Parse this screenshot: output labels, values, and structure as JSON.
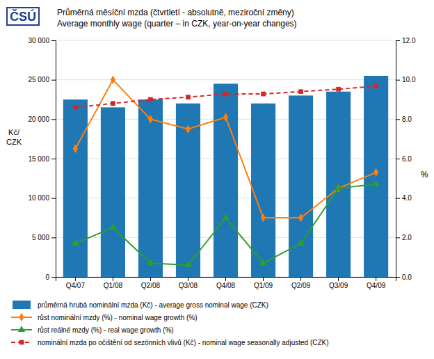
{
  "chart_data": {
    "type": "bar",
    "title": "Průměrná měsíční mzda (čtvrtletí - absolutně, meziroční změny)",
    "subtitle": "Average monthly wage (quarter – in CZK, year-on-year changes)",
    "annotations": [
      "ČSÚ"
    ],
    "ylabel": [
      "Kč/",
      "CZK"
    ],
    "y2label": "%",
    "categories": [
      "Q4/07",
      "Q1/08",
      "Q2/08",
      "Q3/08",
      "Q4/08",
      "Q1/09",
      "Q2/09",
      "Q3/09",
      "Q4/09"
    ],
    "series": [
      {
        "name": "průměrná hrubá nominální mzda (Kč)  - average gross nominal wage (CZK)",
        "type": "bar",
        "values": [
          22500,
          21500,
          22500,
          22000,
          24500,
          22000,
          23000,
          23500,
          25500
        ]
      },
      {
        "name": "růst nominální mzdy (%) - nominal wage growth (%)",
        "type": "line",
        "axis": "y2",
        "marker": "diamond",
        "line_style": "solid",
        "values": [
          6.5,
          10.0,
          8.0,
          7.5,
          8.1,
          3.0,
          3.0,
          4.5,
          5.3
        ]
      },
      {
        "name": "růst reálné mzdy (%) - real wage growth (%)",
        "type": "line",
        "axis": "y2",
        "marker": "triangle",
        "line_style": "solid",
        "values": [
          1.7,
          2.5,
          0.7,
          0.6,
          3.0,
          0.7,
          1.7,
          4.5,
          4.7
        ]
      },
      {
        "name": "nominální mzda po očištění od sezónních vlivů (Kč) - nominal wage seasonally adjusted (CZK)",
        "type": "line",
        "marker": "square",
        "line_style": "dashed",
        "values": [
          21500,
          22000,
          22500,
          22800,
          23200,
          23200,
          23500,
          23800,
          24200
        ]
      }
    ],
    "ylim": [
      0,
      30000
    ],
    "yticks": [
      0,
      {
        "value": 5000,
        "label": "5 000"
      },
      {
        "value": 10000,
        "label": "10 000"
      },
      {
        "value": 15000,
        "label": "15 000"
      },
      {
        "value": 20000,
        "label": "20 000"
      },
      {
        "value": 25000,
        "label": "25 000"
      },
      {
        "value": 30000,
        "label": "30 000"
      }
    ],
    "y2lim": [
      0.0,
      12.0
    ],
    "y2ticks": [
      {
        "value": 0,
        "label": "0.0"
      },
      {
        "value": 2,
        "label": "2.0"
      },
      {
        "value": 4,
        "label": "4.0"
      },
      {
        "value": 6,
        "label": "6.0"
      },
      {
        "value": 8,
        "label": "8.0"
      },
      {
        "value": 10,
        "label": "10.0"
      },
      {
        "value": 12,
        "label": "12.0"
      }
    ],
    "grid": true,
    "legend": "bottom"
  }
}
